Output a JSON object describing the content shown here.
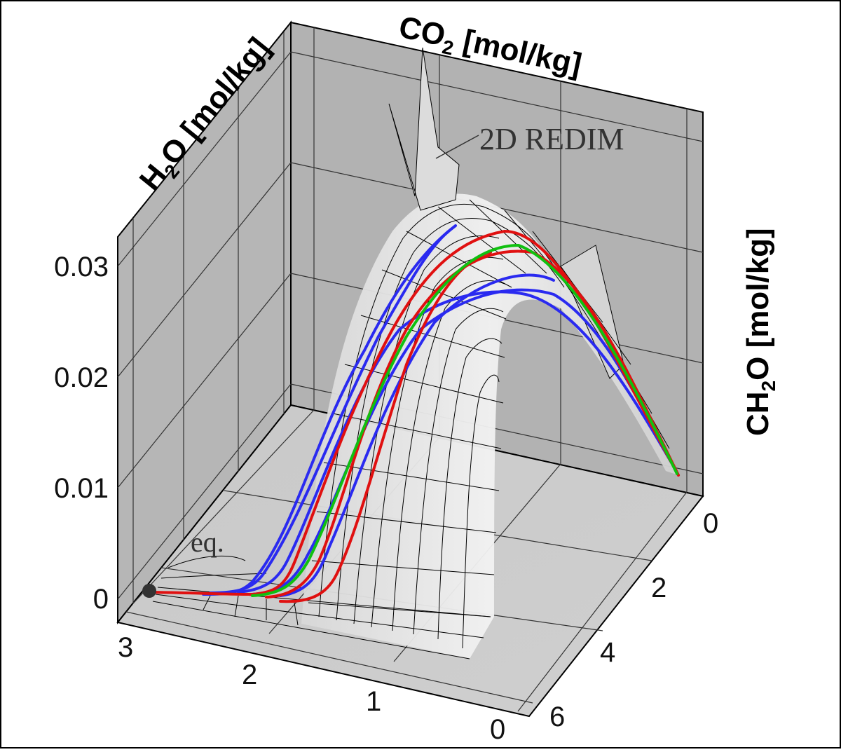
{
  "figure": {
    "axes": {
      "h2o": {
        "label_main": "H",
        "label_sub": "2",
        "label_rest": "O [mol/kg]",
        "ticks": [
          "3",
          "2",
          "1",
          "0"
        ]
      },
      "co2": {
        "label_main": "CO",
        "label_sub": "2",
        "label_rest": " [mol/kg]",
        "ticks": [
          "0",
          "2",
          "4",
          "6"
        ]
      },
      "ch2o": {
        "label_main": "CH",
        "label_sub": "2",
        "label_rest": "O [mol/kg]",
        "ticks": [
          "0.03",
          "0.02",
          "0.01",
          "0"
        ]
      }
    },
    "annotations": {
      "redim": "2D REDIM",
      "equilibrium": "eq."
    },
    "colors": {
      "red": "#e01010",
      "green": "#10c010",
      "blue": "#2a2af0",
      "mesh": "#000000",
      "wall": "#b4b4b4",
      "floor": "#c8c8c8"
    }
  }
}
